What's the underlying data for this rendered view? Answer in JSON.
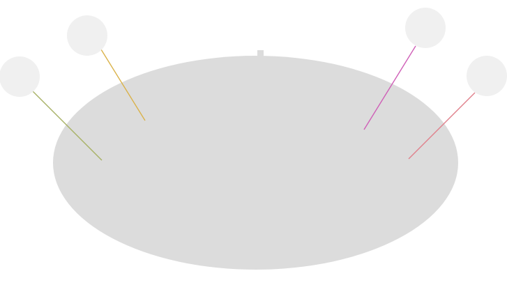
{
  "diagram": {
    "colors": {
      "background": "#ffffff",
      "blob": "#dcdcdc",
      "marker": "#f0f0f0"
    },
    "pointers": [
      {
        "id": "pointer-1",
        "color": "#a7b165"
      },
      {
        "id": "pointer-2",
        "color": "#dab24a"
      },
      {
        "id": "pointer-3",
        "color": "#cf5fb7"
      },
      {
        "id": "pointer-4",
        "color": "#e0808b"
      }
    ]
  }
}
